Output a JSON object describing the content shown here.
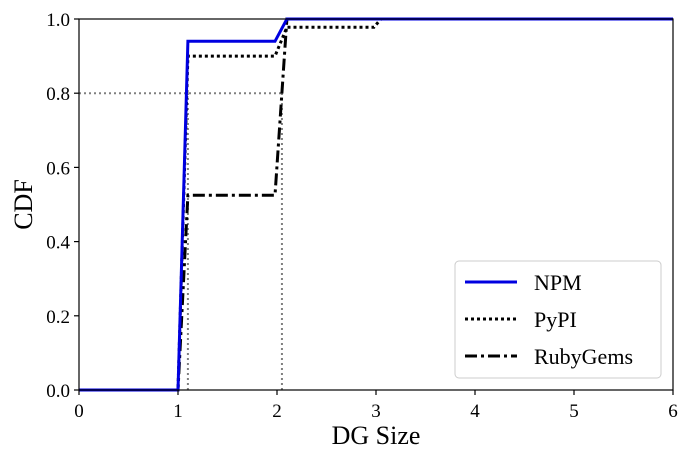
{
  "chart_data": {
    "type": "line",
    "title": "",
    "xlabel": "DG Size",
    "ylabel": "CDF",
    "xlim": [
      0,
      6
    ],
    "ylim": [
      0,
      1.0
    ],
    "xticks": [
      "0",
      "1",
      "2",
      "3",
      "4",
      "5",
      "6"
    ],
    "yticks": [
      "0.0",
      "0.2",
      "0.4",
      "0.6",
      "0.8",
      "1.0"
    ],
    "grid": false,
    "legend_position": "lower-right",
    "series": [
      {
        "name": "NPM",
        "color": "#0000e0",
        "style": "solid",
        "x": [
          0,
          1.0,
          1.1,
          1.98,
          2.1,
          6
        ],
        "y": [
          0,
          0,
          0.94,
          0.94,
          1.0,
          1.0
        ]
      },
      {
        "name": "PyPI",
        "color": "#000000",
        "style": "dotted",
        "x": [
          0,
          1.0,
          1.1,
          1.98,
          2.1,
          2.98,
          3.05,
          6
        ],
        "y": [
          0,
          0,
          0.9,
          0.9,
          0.978,
          0.978,
          1.0,
          1.0
        ]
      },
      {
        "name": "RubyGems",
        "color": "#000000",
        "style": "dashdot",
        "x": [
          0,
          1.0,
          1.1,
          1.98,
          2.1,
          6
        ],
        "y": [
          0,
          0,
          0.525,
          0.525,
          1.0,
          1.0
        ]
      }
    ],
    "reference_lines": {
      "color": "#808080",
      "y_level": 0.8,
      "x_values": [
        1.1,
        2.05
      ]
    }
  }
}
